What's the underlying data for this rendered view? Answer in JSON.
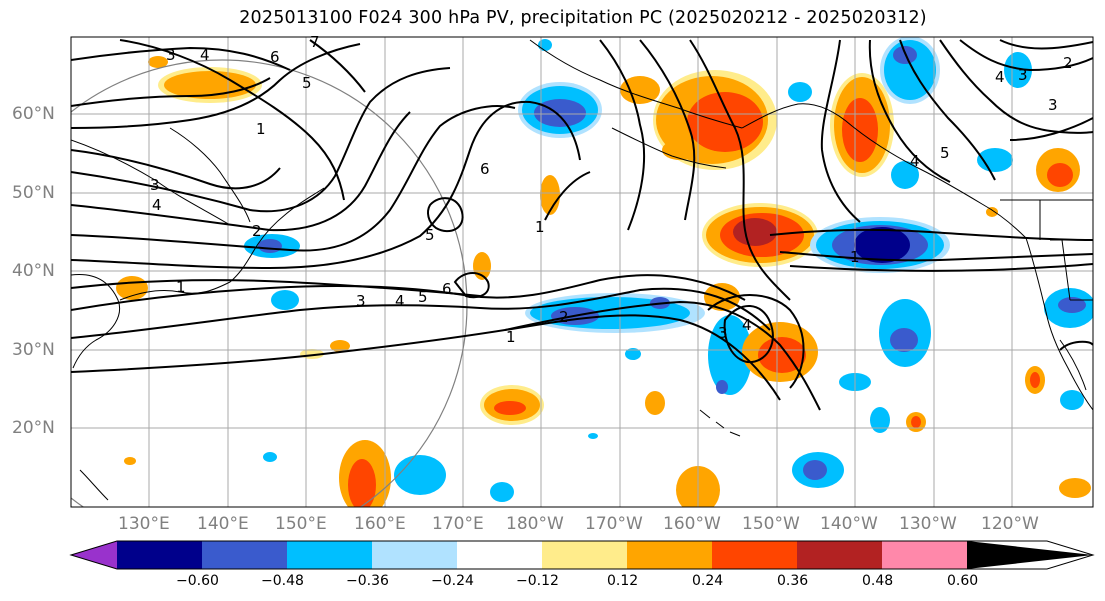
{
  "title": "2025013100 F024 300 hPa PV, precipitation PC (2025020212 - 2025020312)",
  "lat_labels": [
    "60°N",
    "50°N",
    "40°N",
    "30°N",
    "20°N"
  ],
  "lon_labels": [
    "130°E",
    "140°E",
    "150°E",
    "160°E",
    "170°E",
    "180°W",
    "170°W",
    "160°W",
    "150°W",
    "140°W",
    "130°W",
    "120°W"
  ],
  "contour_labels": [
    "1",
    "2",
    "3",
    "4",
    "5",
    "6",
    "7"
  ],
  "colorbar": {
    "ticks": [
      "−0.60",
      "−0.48",
      "−0.36",
      "−0.24",
      "−0.12",
      "0.12",
      "0.24",
      "0.36",
      "0.48",
      "0.60"
    ],
    "colors": [
      "#9932cc",
      "#00008b",
      "#3a5bcd",
      "#00bfff",
      "#b0e2ff",
      "#ffffff",
      "#ffec8b",
      "#ffa500",
      "#ff4500",
      "#b22222",
      "#ff88aa"
    ]
  }
}
